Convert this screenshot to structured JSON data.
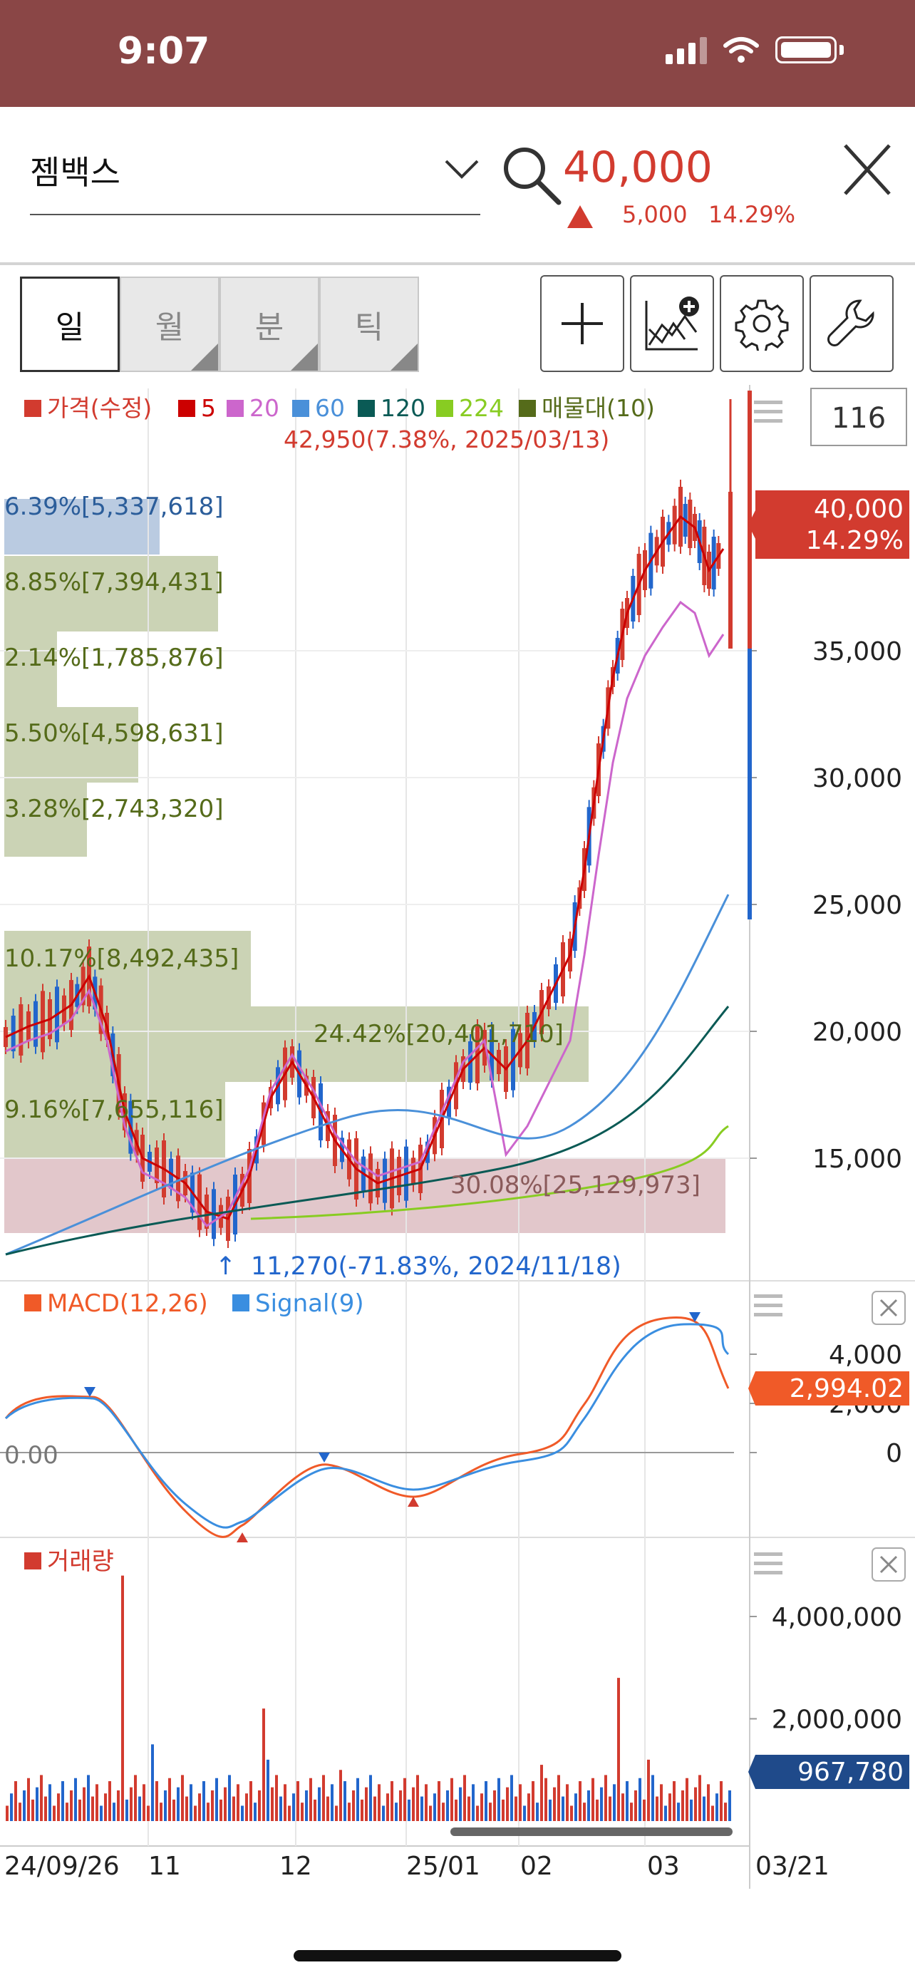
{
  "status": {
    "time": "9:07"
  },
  "header": {
    "stock_name": "젬백스",
    "price": "40,000",
    "change": "5,000",
    "change_pct": "14.29%"
  },
  "tabs": [
    "일",
    "월",
    "분",
    "틱"
  ],
  "chart": {
    "legend": {
      "price": "가격(수정)",
      "ma5": "5",
      "ma20": "20",
      "ma60": "60",
      "ma120": "120",
      "ma224": "224",
      "vp": "매물대(10)"
    },
    "setting_value": "116",
    "high_annotation": "42,950(7.38%, 2025/03/13)",
    "low_annotation": "11,270(-71.83%, 2024/11/18)",
    "current_price_tag": "40,000",
    "current_pct_tag": "14.29%",
    "y_ticks": [
      "35,000",
      "30,000",
      "25,000",
      "20,000",
      "15,000"
    ],
    "volume_profile": [
      "6.39%[5,337,618]",
      "8.85%[7,394,431]",
      "2.14%[1,785,876]",
      "5.50%[4,598,631]",
      "3.28%[2,743,320]",
      "10.17%[8,492,435]",
      "24.42%[20,401,710]",
      "9.16%[7,655,116]",
      "30.08%[25,129,973]"
    ],
    "colors": {
      "ma5": "#cc0000",
      "ma20": "#cc66cc",
      "ma60": "#4a90d9",
      "ma120": "#0a5a55",
      "ma224": "#88cc22",
      "vp": "#556b1a",
      "up": "#d23b2f",
      "down": "#2266cc"
    }
  },
  "macd": {
    "label": "MACD(12,26)",
    "signal_label": "Signal(9)",
    "zero_label": "0.00",
    "y_ticks": [
      "4,000",
      "2,000",
      "0"
    ],
    "value_tag": "2,994.02",
    "colors": {
      "macd": "#f05a28",
      "signal": "#3a8ee0"
    }
  },
  "volume": {
    "label": "거래량",
    "y_ticks": [
      "4,000,000",
      "2,000,000"
    ],
    "value_tag": "967,780"
  },
  "x_axis": {
    "labels": [
      "24/09/26",
      "11",
      "12",
      "25/01",
      "02",
      "03"
    ],
    "date_label": "03/21"
  }
}
